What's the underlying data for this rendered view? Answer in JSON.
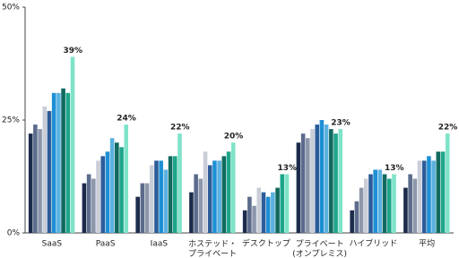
{
  "chart_data": {
    "type": "bar",
    "categories": [
      "SaaS",
      "PaaS",
      "IaaS",
      "ホステッド・\nプライベート",
      "デスクトップ",
      "プライベート\n(オンプレミス)",
      "ハイブリッド",
      "平均"
    ],
    "series": [
      {
        "color": "#1c2b4c",
        "values": [
          22,
          11,
          8,
          9,
          5,
          20,
          5,
          10
        ]
      },
      {
        "color": "#5c6b8c",
        "values": [
          24,
          13,
          11,
          13,
          8,
          22,
          7,
          13
        ]
      },
      {
        "color": "#8d97ab",
        "values": [
          23,
          12,
          11,
          12,
          6,
          21,
          10,
          12
        ]
      },
      {
        "color": "#c9cdd7",
        "values": [
          28,
          16,
          15,
          18,
          10,
          23,
          12,
          16
        ]
      },
      {
        "color": "#2c5c9a",
        "values": [
          27,
          17,
          16,
          15,
          9,
          24,
          13,
          16
        ]
      },
      {
        "color": "#1d8fd4",
        "values": [
          31,
          18,
          16,
          16,
          8,
          25,
          14,
          17
        ]
      },
      {
        "color": "#5bb1e0",
        "values": [
          31,
          21,
          14,
          16,
          9,
          24,
          14,
          16
        ]
      },
      {
        "color": "#11695f",
        "values": [
          32,
          20,
          17,
          17,
          10,
          23,
          13,
          18
        ]
      },
      {
        "color": "#1da58a",
        "values": [
          31,
          19,
          17,
          18,
          13,
          22,
          12,
          18
        ]
      },
      {
        "color": "#7fe3c9",
        "values": [
          39,
          24,
          22,
          20,
          13,
          23,
          13,
          22
        ],
        "value_labels": [
          "39%",
          "24%",
          "22%",
          "20%",
          "13%",
          "23%",
          "13%",
          "22%"
        ]
      }
    ],
    "ylim": [
      0,
      50
    ],
    "yticks": [
      {
        "value": 0,
        "label": "0%"
      },
      {
        "value": 25,
        "label": "25%"
      },
      {
        "value": 50,
        "label": "50%"
      }
    ]
  }
}
